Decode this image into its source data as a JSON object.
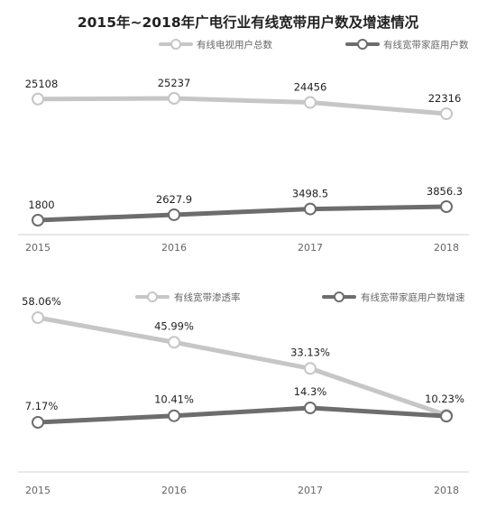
{
  "title": "2015年~2018年广电行业有线宽带用户数及增速情况",
  "colors": {
    "light_series": "#c6c6c6",
    "dark_series": "#6d6d6d",
    "axis": "#d0d0d0"
  },
  "chart_data": [
    {
      "type": "line",
      "x": [
        "2015",
        "2016",
        "2017",
        "2018"
      ],
      "series": [
        {
          "name": "有线电视用户总数",
          "values": [
            25108,
            25237,
            24456,
            22316
          ],
          "labels": [
            "25108",
            "25237",
            "24456",
            "22316"
          ]
        },
        {
          "name": "有线宽带家庭用户数",
          "values": [
            1800,
            2627.9,
            3498.5,
            3856.3
          ],
          "labels": [
            "1800",
            "2627.9",
            "3498.5",
            "3856.3"
          ]
        }
      ],
      "legend": "top-right",
      "grid": false
    },
    {
      "type": "line",
      "x": [
        "2015",
        "2016",
        "2017",
        "2018"
      ],
      "series": [
        {
          "name": "有线宽带渗透率",
          "values": [
            58.06,
            45.99,
            33.13,
            10.23
          ],
          "labels": [
            "58.06%",
            "45.99%",
            "33.13%",
            "10.23%"
          ]
        },
        {
          "name": "有线宽带家庭用户数增速",
          "values": [
            7.17,
            10.41,
            14.3,
            10.23
          ],
          "labels": [
            "7.17%",
            "10.41%",
            "14.3%",
            ""
          ]
        }
      ],
      "legend": "top-right",
      "grid": false
    }
  ]
}
